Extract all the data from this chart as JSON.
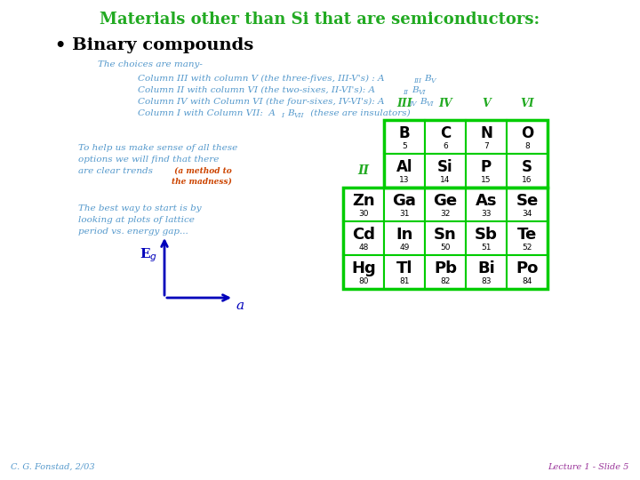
{
  "title": "Materials other than Si that are semiconductors:",
  "title_color": "#22AA22",
  "title_fontsize": 13,
  "bg_color": "#FFFFFF",
  "bullet_text": "• Binary compounds",
  "bullet_fontsize": 14,
  "bullet_color": "#000000",
  "text_color_blue": "#5599CC",
  "text_color_green": "#22AA22",
  "text_color_orange": "#CC4400",
  "text_color_purple": "#993399",
  "footer_left": "C. G. Fonstad, 2/03",
  "footer_right": "Lecture 1 - Slide 5",
  "periodic_table": {
    "col_headers": [
      "III",
      "IV",
      "V",
      "VI"
    ],
    "row_II_label": "II",
    "cells": [
      [
        {
          "sym": "B",
          "num": "5"
        },
        {
          "sym": "C",
          "num": "6"
        },
        {
          "sym": "N",
          "num": "7"
        },
        {
          "sym": "O",
          "num": "8"
        }
      ],
      [
        {
          "sym": "Al",
          "num": "13"
        },
        {
          "sym": "Si",
          "num": "14"
        },
        {
          "sym": "P",
          "num": "15"
        },
        {
          "sym": "S",
          "num": "16"
        }
      ],
      [
        {
          "sym": "Zn",
          "num": "30"
        },
        {
          "sym": "Ga",
          "num": "31"
        },
        {
          "sym": "Ge",
          "num": "32"
        },
        {
          "sym": "As",
          "num": "33"
        },
        {
          "sym": "Se",
          "num": "34"
        }
      ],
      [
        {
          "sym": "Cd",
          "num": "48"
        },
        {
          "sym": "In",
          "num": "49"
        },
        {
          "sym": "Sn",
          "num": "50"
        },
        {
          "sym": "Sb",
          "num": "51"
        },
        {
          "sym": "Te",
          "num": "52"
        }
      ],
      [
        {
          "sym": "Hg",
          "num": "80"
        },
        {
          "sym": "Tl",
          "num": "81"
        },
        {
          "sym": "Pb",
          "num": "82"
        },
        {
          "sym": "Bi",
          "num": "83"
        },
        {
          "sym": "Po",
          "num": "84"
        }
      ]
    ],
    "border_color": "#00CC00",
    "cell_bg": "#FFFFFF",
    "sym_color": "#000000",
    "num_color": "#000000"
  }
}
